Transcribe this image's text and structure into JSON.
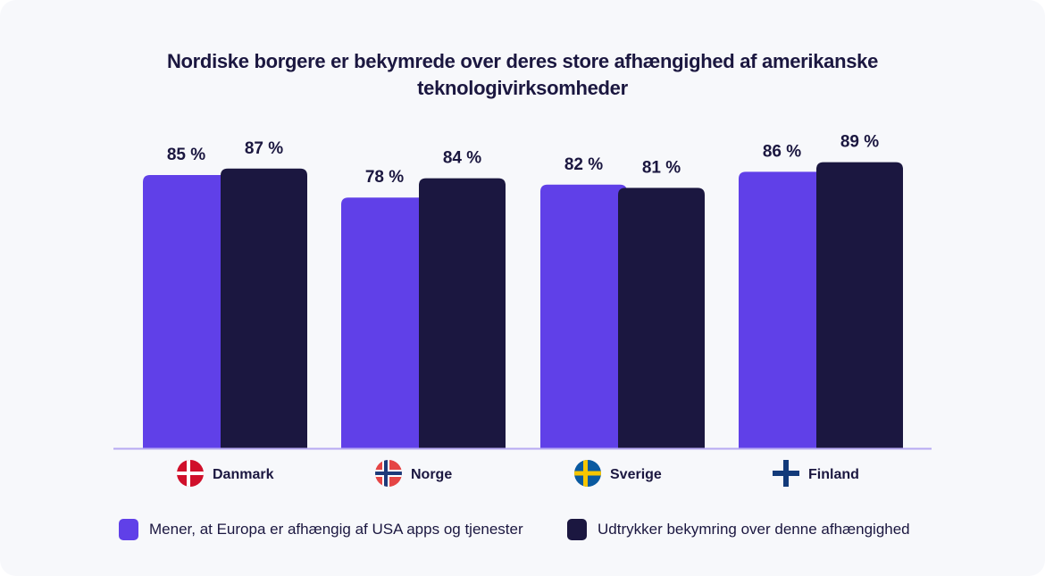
{
  "chart_data": {
    "type": "bar",
    "title": "Nordiske borgere er bekymrede over deres store afhængighed af amerikanske teknologivirksomheder",
    "categories": [
      "Danmark",
      "Norge",
      "Sverige",
      "Finland"
    ],
    "category_icons": [
      "denmark-flag-icon",
      "norway-flag-icon",
      "sweden-flag-icon",
      "finland-flag-icon"
    ],
    "series": [
      {
        "name": "Mener, at Europa er afhængig af USA apps og tjenester",
        "color": "#6040e8",
        "values": [
          85,
          78,
          82,
          86
        ]
      },
      {
        "name": "Udtrykker bekymring over denne afhængighed",
        "color": "#1b1740",
        "values": [
          87,
          84,
          81,
          89
        ]
      }
    ],
    "value_suffix": " %",
    "ylim": [
      0,
      100
    ],
    "grid": false,
    "legend_position": "bottom"
  }
}
